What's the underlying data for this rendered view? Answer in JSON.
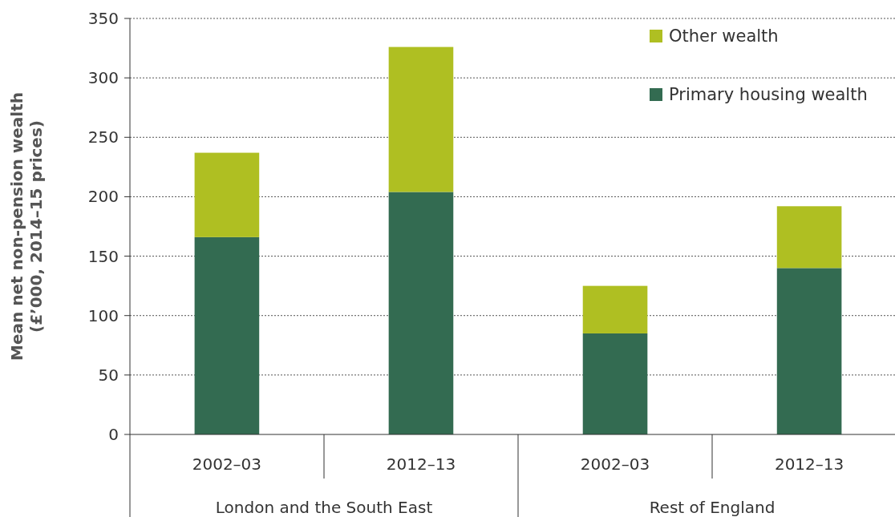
{
  "chart_data": {
    "type": "bar",
    "stacked": true,
    "ylabel": "Mean net non-pension wealth\n(£’000, 2014–15 prices)",
    "categories": [
      "2002–03",
      "2012–13",
      "2002–03",
      "2012–13"
    ],
    "series": [
      {
        "name": "Primary housing wealth",
        "color": "#336b51",
        "values": [
          166,
          204,
          85,
          140
        ]
      },
      {
        "name": "Other wealth",
        "color": "#afbf22",
        "values": [
          71,
          122,
          40,
          52
        ]
      }
    ],
    "annotations": [
      "London and the South East",
      "Rest of England"
    ],
    "ylim": [
      0,
      350
    ],
    "yticks": [
      0,
      50,
      100,
      150,
      200,
      250,
      300,
      350
    ],
    "grid": "y",
    "legend": "top right"
  }
}
